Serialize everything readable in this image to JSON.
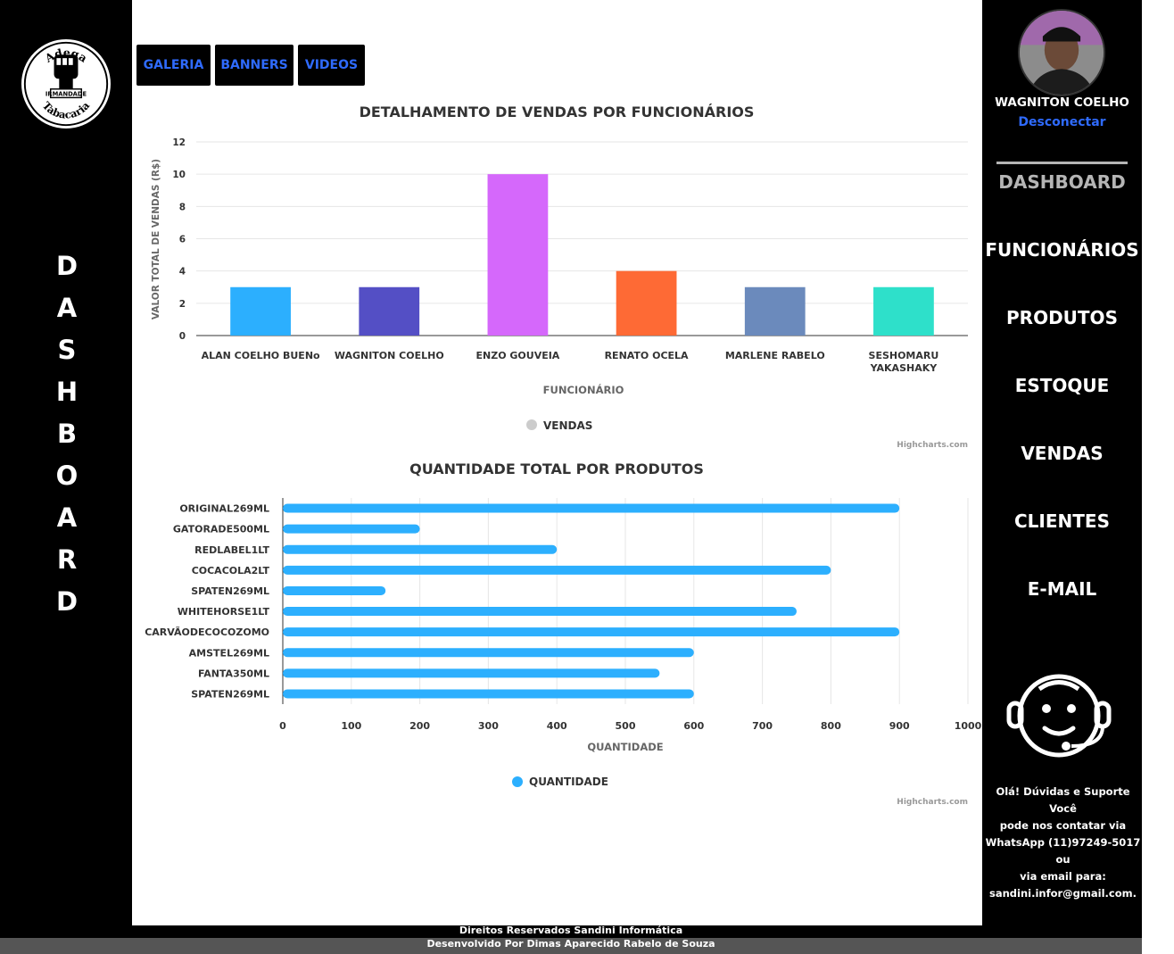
{
  "brand": {
    "logo_text_top": "Adega",
    "logo_text_bottom": "Tabacaria",
    "logo_badge": "IRMANDADE"
  },
  "left_title": "DASHBOARD",
  "top_tabs": [
    {
      "label": "GALERIA"
    },
    {
      "label": "BANNERS"
    },
    {
      "label": "VIDEOS"
    }
  ],
  "user": {
    "name": "WAGNITON COELHO",
    "logout_label": "Desconectar"
  },
  "menu": [
    {
      "label": "DASHBOARD",
      "active": true
    },
    {
      "label": "FUNCIONÁRIOS"
    },
    {
      "label": "PRODUTOS"
    },
    {
      "label": "ESTOQUE"
    },
    {
      "label": "VENDAS"
    },
    {
      "label": "CLIENTES"
    },
    {
      "label": "E-MAIL"
    }
  ],
  "support": {
    "lines": [
      "Olá! Dúvidas e Suporte Você",
      "pode nos contatar via",
      "WhatsApp (11)97249-5017 ou",
      "via email para:",
      "sandini.infor@gmail.com."
    ]
  },
  "footer": {
    "line1": "Direitos Reservados Sandini Informática",
    "line2": "Desenvolvido Por Dimas Aparecido Rabelo de Souza"
  },
  "chart_data": [
    {
      "type": "bar",
      "title": "DETALHAMENTO DE VENDAS POR FUNCIONÁRIOS",
      "xlabel": "FUNCIONÁRIO",
      "ylabel": "VALOR TOTAL DE VENDAS (R$)",
      "ylim": [
        0,
        12
      ],
      "yticks": [
        0,
        2,
        4,
        6,
        8,
        10,
        12
      ],
      "categories": [
        "ALAN COELHO BUENo",
        "WAGNITON COELHO",
        "ENZO GOUVEIA",
        "RENATO OCELA",
        "MARLENE RABELO",
        "SESHOMARU YAKASHAKY"
      ],
      "series": [
        {
          "name": "VENDAS",
          "values": [
            3,
            3,
            10,
            4,
            3,
            3
          ]
        }
      ],
      "bar_colors": [
        "#2caffe",
        "#544fc5",
        "#d568fb",
        "#fe6a35",
        "#6b8abc",
        "#2ee0ca"
      ],
      "legend_color": "#cccccc",
      "credits": "Highcharts.com",
      "grid": true,
      "legend_position": "bottom-center"
    },
    {
      "type": "bar",
      "orientation": "horizontal",
      "title": "QUANTIDADE TOTAL POR PRODUTOS",
      "xlabel": "QUANTIDADE",
      "xlim": [
        0,
        1000
      ],
      "xticks": [
        0,
        100,
        200,
        300,
        400,
        500,
        600,
        700,
        800,
        900,
        1000
      ],
      "categories": [
        "ORIGINAL269ML",
        "GATORADE500ML",
        "REDLABEL1LT",
        "COCACOLA2LT",
        "SPATEN269ML",
        "WHITEHORSE1LT",
        "CARVÃODECOCOZOMO",
        "AMSTEL269ML",
        "FANTA350ML",
        "SPATEN269ML"
      ],
      "series": [
        {
          "name": "QUANTIDADE",
          "values": [
            900,
            200,
            400,
            800,
            150,
            750,
            900,
            600,
            550,
            600
          ]
        }
      ],
      "bar_color": "#2caffe",
      "credits": "Highcharts.com",
      "grid": true,
      "legend_position": "bottom-center"
    }
  ]
}
